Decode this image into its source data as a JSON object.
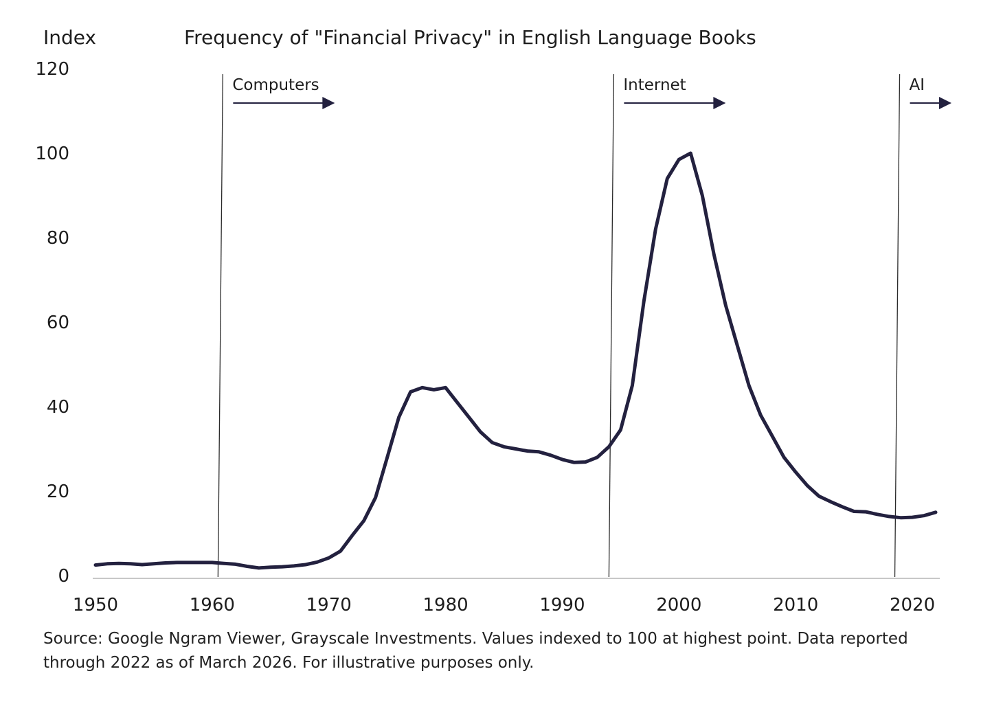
{
  "chart_data": {
    "type": "line",
    "title": "Frequency of \"Financial Privacy\" in English Language Books",
    "ylabel": "Index",
    "xlabel": "",
    "xlim": [
      1950,
      2022
    ],
    "ylim": [
      0,
      120
    ],
    "x_ticks": [
      "1950",
      "1960",
      "1970",
      "1980",
      "1990",
      "2000",
      "2010",
      "2020"
    ],
    "y_ticks": [
      "0",
      "20",
      "40",
      "60",
      "80",
      "100",
      "120"
    ],
    "grid": false,
    "line_color": "#23213f",
    "series": [
      {
        "x": [
          1950,
          1951,
          1952,
          1953,
          1954,
          1955,
          1956,
          1957,
          1958,
          1959,
          1960,
          1961,
          1962,
          1963,
          1964,
          1965,
          1966,
          1967,
          1968,
          1969,
          1970,
          1971,
          1972,
          1973,
          1974,
          1975,
          1976,
          1977,
          1978,
          1979,
          1980,
          1981,
          1982,
          1983,
          1984,
          1985,
          1986,
          1987,
          1988,
          1989,
          1990,
          1991,
          1992,
          1993,
          1994,
          1995,
          1996,
          1997,
          1998,
          1999,
          2000,
          2001,
          2002,
          2003,
          2004,
          2005,
          2006,
          2007,
          2008,
          2009,
          2010,
          2011,
          2012,
          2013,
          2014,
          2015,
          2016,
          2017,
          2018,
          2019,
          2020,
          2021,
          2022
        ],
        "y": [
          2.5,
          2.8,
          2.9,
          2.8,
          2.6,
          2.8,
          3.0,
          3.1,
          3.1,
          3.1,
          3.1,
          2.9,
          2.7,
          2.2,
          1.8,
          2.0,
          2.1,
          2.3,
          2.6,
          3.2,
          4.2,
          5.8,
          9.5,
          13.0,
          18.5,
          28.0,
          37.5,
          43.5,
          44.5,
          44.0,
          44.5,
          41.0,
          37.5,
          34.0,
          31.5,
          30.5,
          30.0,
          29.5,
          29.3,
          28.5,
          27.5,
          26.8,
          26.9,
          28.0,
          30.5,
          34.5,
          45.0,
          65.0,
          82.0,
          94.0,
          98.5,
          100.0,
          90.0,
          76.0,
          64.0,
          54.5,
          45.0,
          38.0,
          33.0,
          28.0,
          24.5,
          21.3,
          18.8,
          17.5,
          16.3,
          15.2,
          15.1,
          14.5,
          14.0,
          13.7,
          13.8,
          14.2,
          15.0
        ]
      }
    ],
    "eras": [
      {
        "label": "Computers",
        "year": 1960.5
      },
      {
        "label": "Internet",
        "year": 1994
      },
      {
        "label": "AI",
        "year": 2018.5
      }
    ]
  },
  "source_note": "Source: Google Ngram Viewer, Grayscale Investments. Values indexed to 100 at highest point. Data reported through 2022 as of March 2026. For illustrative purposes only."
}
